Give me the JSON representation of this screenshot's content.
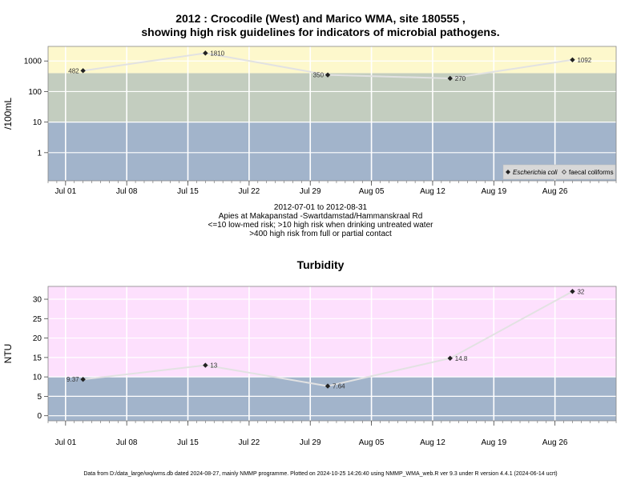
{
  "header": {
    "title_line1": "2012 : Crocodile (West) and Marico WMA, site 180555 ,",
    "title_line2": "showing high risk guidelines for indicators of microbial pathogens."
  },
  "caption": {
    "date_range": "2012-07-01 to 2012-08-31",
    "site_name": "Apies at Makapanstad -Swartdamstad/Hammanskraal Rd",
    "guideline1": "<=10 low-med risk; >10 high risk when drinking untreated water",
    "guideline2": ">400 high risk from full or partial contact"
  },
  "footer": {
    "text": "Data from D:/data_large/wq/wms.db dated 2024-08-27, mainly NMMP programme. Plotted on 2024-10-25 14:26:40 using NMMP_WMA_web.R ver 9.3 under R version 4.4.1 (2024-06-14 ucrt)"
  },
  "colors": {
    "band_yellow": "#fdf8cc",
    "band_green": "#c3cdbf",
    "band_blue": "#a2b4cb",
    "band_pink": "#fde0fd",
    "grid": "#ffffff",
    "series_line": "#e2e2e2",
    "marker": "#222222"
  },
  "chart_data": [
    {
      "type": "line",
      "title": "",
      "ylabel": "/100mL",
      "xlabel": "",
      "y_scale": "log10",
      "x_ticks": [
        "Jul 01",
        "Jul 08",
        "Jul 15",
        "Jul 22",
        "Jul 29",
        "Aug 05",
        "Aug 12",
        "Aug 19",
        "Aug 26"
      ],
      "y_ticks": [
        "1",
        "10",
        "100",
        "1000"
      ],
      "xlim": [
        "2012-06-29",
        "2012-09-02"
      ],
      "ylim": [
        0.12,
        3000
      ],
      "bands": [
        {
          "from": 0.12,
          "to": 10,
          "color": "band_blue"
        },
        {
          "from": 10,
          "to": 400,
          "color": "band_green"
        },
        {
          "from": 400,
          "to": 3000,
          "color": "band_yellow"
        }
      ],
      "grid": true,
      "legend_position": "bottom-right",
      "series": [
        {
          "name": "Escherichia coli",
          "marker": "filled-diamond",
          "points": [
            {
              "date": "2012-07-03",
              "value": 482,
              "label": "482"
            },
            {
              "date": "2012-07-17",
              "value": 1810,
              "label": "1810"
            },
            {
              "date": "2012-07-31",
              "value": 350,
              "label": "350"
            },
            {
              "date": "2012-08-14",
              "value": 270,
              "label": "270"
            },
            {
              "date": "2012-08-28",
              "value": 1092,
              "label": "1092"
            }
          ]
        },
        {
          "name": "faecal coliforms",
          "marker": "open-diamond",
          "points": []
        }
      ]
    },
    {
      "type": "line",
      "title": "Turbidity",
      "ylabel": "NTU",
      "xlabel": "",
      "x_ticks": [
        "Jul 01",
        "Jul 08",
        "Jul 15",
        "Jul 22",
        "Jul 29",
        "Aug 05",
        "Aug 12",
        "Aug 19",
        "Aug 26"
      ],
      "y_ticks": [
        "0",
        "5",
        "10",
        "15",
        "20",
        "25",
        "30"
      ],
      "xlim": [
        "2012-06-29",
        "2012-09-02"
      ],
      "ylim": [
        -1.3,
        33.3
      ],
      "bands": [
        {
          "from": -1.3,
          "to": 10,
          "color": "band_blue"
        },
        {
          "from": 10,
          "to": 33.3,
          "color": "band_pink"
        }
      ],
      "grid": true,
      "series": [
        {
          "name": "",
          "marker": "filled-diamond",
          "points": [
            {
              "date": "2012-07-03",
              "value": 9.37,
              "label": "9.37"
            },
            {
              "date": "2012-07-17",
              "value": 13,
              "label": "13"
            },
            {
              "date": "2012-07-31",
              "value": 7.64,
              "label": "7.64"
            },
            {
              "date": "2012-08-14",
              "value": 14.8,
              "label": "14.8"
            },
            {
              "date": "2012-08-28",
              "value": 32,
              "label": "32"
            }
          ]
        }
      ]
    }
  ]
}
